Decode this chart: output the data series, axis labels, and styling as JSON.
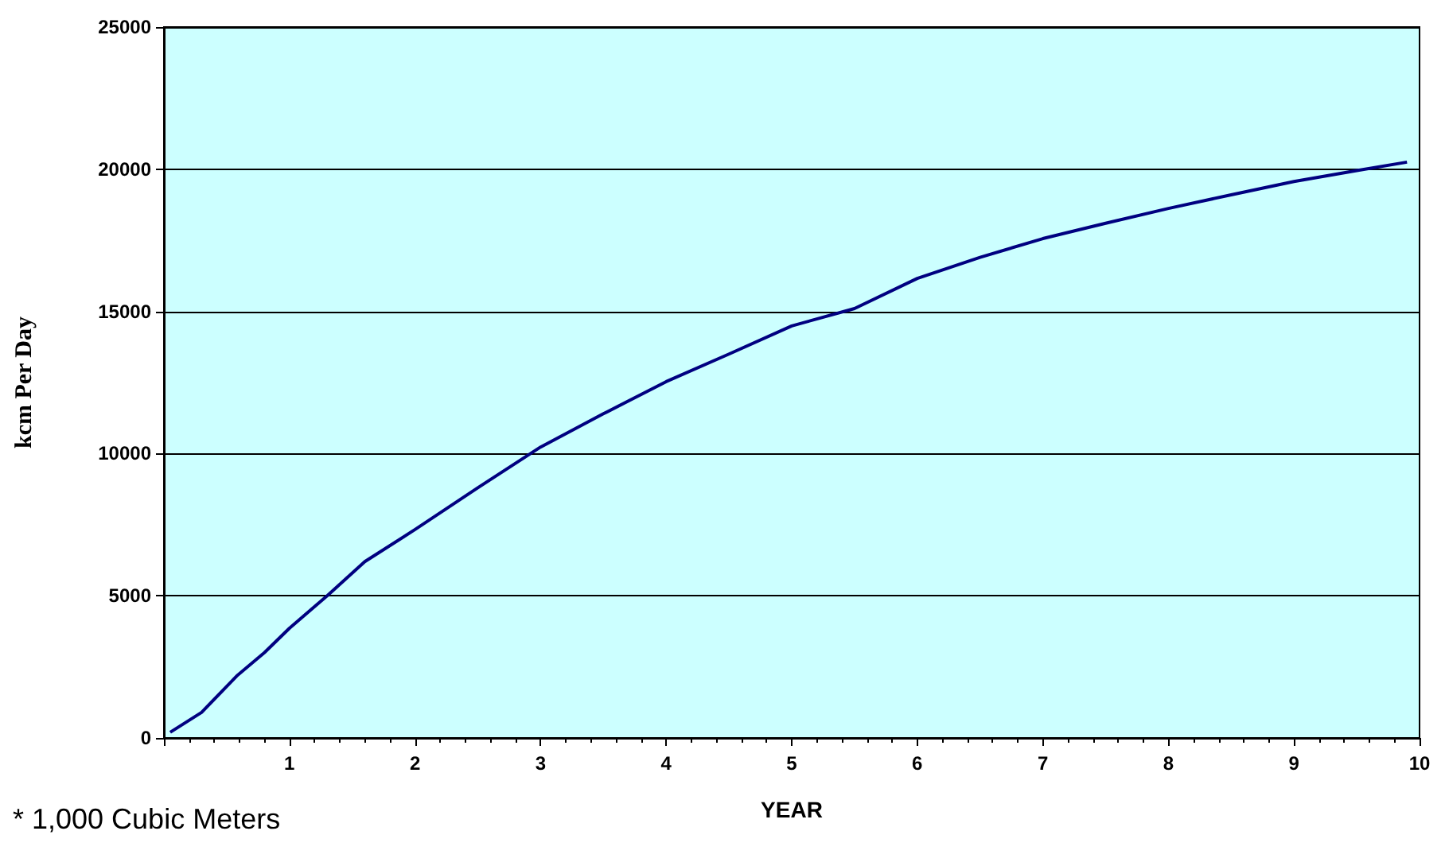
{
  "chart_data": {
    "type": "line",
    "xlabel": "YEAR",
    "ylabel": "kcm Per Day",
    "annotations": [
      "* 1,000 Cubic Meters"
    ],
    "x": [
      0.05,
      0.3,
      0.58,
      0.8,
      1,
      1.3,
      1.6,
      2,
      2.5,
      3,
      3.5,
      4,
      4.5,
      5,
      5.5,
      6,
      6.5,
      7,
      7.5,
      8,
      8.5,
      9,
      9.5,
      9.9
    ],
    "series": [
      {
        "color": "#000080",
        "values": [
          200,
          900,
          2180,
          3000,
          3860,
          5000,
          6200,
          7330,
          8800,
          10230,
          11400,
          12530,
          13500,
          14490,
          15100,
          16160,
          16900,
          17560,
          18100,
          18620,
          19100,
          19570,
          19950,
          20250
        ]
      }
    ],
    "xlim": [
      0,
      10
    ],
    "xticks": [
      {
        "value": 0,
        "label": null
      },
      1,
      2,
      3,
      4,
      5,
      6,
      7,
      8,
      9,
      10
    ],
    "ylim": [
      0,
      25000
    ],
    "yticks": [
      0,
      5000,
      10000,
      15000,
      20000,
      25000
    ],
    "grid": "y",
    "marker": "none",
    "line_style": "solid"
  }
}
